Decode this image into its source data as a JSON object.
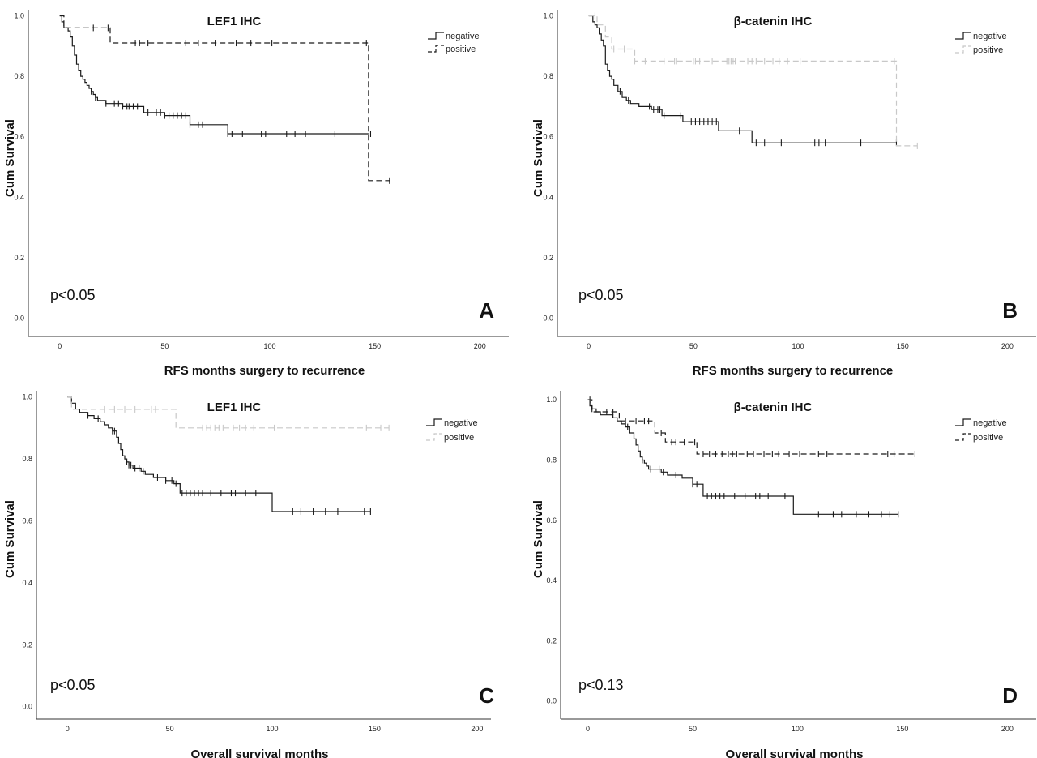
{
  "chart_data": [
    {
      "type": "line",
      "panel_letter": "A",
      "title": "LEF1 IHC",
      "xlabel": "RFS months surgery to recurrence",
      "ylabel": "Cum Survival",
      "annotation": "p<0.05",
      "xlim": [
        -8,
        213
      ],
      "ylim": [
        -0.06,
        1.02
      ],
      "xticks": [
        "0",
        "50",
        "100",
        "150",
        "200"
      ],
      "yticks": [
        "0.0",
        "0.2",
        "0.4",
        "0.6",
        "0.8",
        "1.0"
      ],
      "legend_position": "top-right",
      "series": [
        {
          "name": "negative",
          "style": "solid",
          "color": "#1a1a1a",
          "x": [
            0,
            1,
            2,
            4,
            5,
            6,
            7,
            8,
            9,
            10,
            11,
            12,
            13,
            14,
            15,
            16,
            17,
            18,
            19,
            20,
            22,
            24,
            30,
            40,
            50,
            62,
            80,
            147
          ],
          "y": [
            1.0,
            0.98,
            0.96,
            0.95,
            0.93,
            0.9,
            0.87,
            0.84,
            0.82,
            0.8,
            0.79,
            0.78,
            0.77,
            0.76,
            0.75,
            0.74,
            0.73,
            0.72,
            0.72,
            0.72,
            0.71,
            0.71,
            0.7,
            0.68,
            0.67,
            0.64,
            0.61,
            0.61
          ],
          "censored": [
            15,
            17,
            22,
            26,
            28,
            30,
            32,
            33,
            35,
            37,
            42,
            46,
            48,
            50,
            52,
            54,
            56,
            58,
            60,
            62,
            66,
            68,
            80,
            82,
            87,
            96,
            98,
            108,
            112,
            117,
            131,
            148
          ]
        },
        {
          "name": "positive",
          "style": "dashed",
          "color": "#1a1a1a",
          "x": [
            0,
            2,
            24,
            147,
            157
          ],
          "y": [
            1.0,
            0.96,
            0.91,
            0.455,
            0.455
          ],
          "censored": [
            16,
            23,
            36,
            38,
            42,
            60,
            66,
            74,
            84,
            91,
            101,
            146,
            157
          ]
        }
      ]
    },
    {
      "type": "line",
      "panel_letter": "B",
      "title": "β-catenin IHC",
      "xlabel": "RFS months surgery to recurrence",
      "ylabel": "Cum Survival",
      "annotation": "p<0.05",
      "xlim": [
        -8,
        213
      ],
      "ylim": [
        -0.06,
        1.02
      ],
      "xticks": [
        "0",
        "50",
        "100",
        "150",
        "200"
      ],
      "yticks": [
        "0.0",
        "0.2",
        "0.4",
        "0.6",
        "0.8",
        "1.0"
      ],
      "legend_position": "top-right",
      "series": [
        {
          "name": "negative",
          "style": "solid",
          "color": "#1a1a1a",
          "x": [
            0,
            2,
            3,
            4,
            5,
            6,
            7,
            8,
            9,
            10,
            11,
            12,
            14,
            16,
            18,
            20,
            22,
            24,
            30,
            35,
            45,
            62,
            78,
            147
          ],
          "y": [
            1.0,
            0.98,
            0.97,
            0.96,
            0.94,
            0.92,
            0.9,
            0.84,
            0.82,
            0.8,
            0.79,
            0.77,
            0.75,
            0.73,
            0.72,
            0.71,
            0.71,
            0.7,
            0.69,
            0.67,
            0.65,
            0.62,
            0.58,
            0.58
          ],
          "censored": [
            15,
            19,
            29,
            31,
            33,
            34,
            36,
            44,
            49,
            51,
            53,
            55,
            57,
            59,
            61,
            72,
            80,
            84,
            92,
            108,
            110,
            113,
            130,
            147
          ]
        },
        {
          "name": "positive",
          "style": "dashed",
          "color": "#c8c8c8",
          "x": [
            0,
            4,
            8,
            11,
            22,
            147,
            157
          ],
          "y": [
            1.0,
            0.97,
            0.93,
            0.89,
            0.85,
            0.57,
            0.57
          ],
          "censored": [
            3,
            12,
            17,
            22,
            27,
            36,
            41,
            42,
            50,
            51,
            53,
            59,
            66,
            67,
            68,
            69,
            70,
            76,
            78,
            80,
            84,
            88,
            91,
            95,
            101,
            146,
            157
          ]
        }
      ]
    },
    {
      "type": "line",
      "panel_letter": "C",
      "title": "LEF1 IHC",
      "xlabel": "Overall survival months",
      "ylabel": "Cum Survival",
      "annotation": "p<0.05",
      "xlim": [
        -8,
        206
      ],
      "ylim": [
        -0.04,
        1.02
      ],
      "xticks": [
        "0",
        "50",
        "100",
        "150",
        "200"
      ],
      "yticks": [
        "0.0",
        "0.2",
        "0.4",
        "0.6",
        "0.8",
        "1.0"
      ],
      "legend_position": "top-right",
      "series": [
        {
          "name": "negative",
          "style": "solid",
          "color": "#1a1a1a",
          "x": [
            0,
            2,
            4,
            6,
            10,
            13,
            16,
            18,
            20,
            22,
            24,
            25,
            26,
            27,
            28,
            29,
            30,
            32,
            34,
            36,
            38,
            40,
            42,
            45,
            48,
            52,
            55,
            100,
            148
          ],
          "y": [
            1.0,
            0.98,
            0.96,
            0.95,
            0.94,
            0.93,
            0.92,
            0.91,
            0.9,
            0.89,
            0.87,
            0.85,
            0.83,
            0.81,
            0.8,
            0.79,
            0.78,
            0.77,
            0.77,
            0.76,
            0.75,
            0.75,
            0.74,
            0.74,
            0.73,
            0.72,
            0.69,
            0.63,
            0.63
          ],
          "censored": [
            10,
            15,
            22,
            23,
            29,
            30,
            31,
            33,
            35,
            37,
            44,
            48,
            51,
            53,
            56,
            58,
            60,
            62,
            64,
            66,
            70,
            75,
            80,
            82,
            87,
            92,
            110,
            114,
            120,
            126,
            132,
            145,
            148
          ]
        },
        {
          "name": "positive",
          "style": "dashed",
          "color": "#c8c8c8",
          "x": [
            0,
            2,
            53,
            157
          ],
          "y": [
            1.0,
            0.96,
            0.9,
            0.9
          ],
          "censored": [
            18,
            23,
            28,
            33,
            41,
            43,
            66,
            68,
            70,
            72,
            74,
            76,
            81,
            84,
            87,
            91,
            101,
            146,
            153,
            157
          ]
        }
      ]
    },
    {
      "type": "line",
      "panel_letter": "D",
      "title": "β-catenin IHC",
      "xlabel": "Overall survival months",
      "ylabel": "Cum Survival",
      "annotation": "p<0.13",
      "xlim": [
        -6,
        213
      ],
      "ylim": [
        -0.06,
        1.03
      ],
      "xticks": [
        "0",
        "50",
        "100",
        "150",
        "200"
      ],
      "yticks": [
        "0.0",
        "0.2",
        "0.4",
        "0.6",
        "0.8",
        "1.0"
      ],
      "legend_position": "top-right",
      "series": [
        {
          "name": "negative",
          "style": "solid",
          "color": "#1a1a1a",
          "x": [
            0,
            1,
            2,
            4,
            6,
            10,
            12,
            14,
            16,
            18,
            20,
            22,
            23,
            24,
            25,
            26,
            27,
            28,
            29,
            30,
            32,
            35,
            38,
            45,
            50,
            55,
            98,
            148
          ],
          "y": [
            1.0,
            0.98,
            0.97,
            0.96,
            0.95,
            0.95,
            0.94,
            0.93,
            0.92,
            0.91,
            0.89,
            0.87,
            0.85,
            0.83,
            0.81,
            0.8,
            0.79,
            0.78,
            0.77,
            0.77,
            0.77,
            0.76,
            0.75,
            0.74,
            0.72,
            0.68,
            0.62,
            0.62
          ],
          "censored": [
            2,
            19,
            26,
            30,
            34,
            36,
            42,
            50,
            52,
            57,
            59,
            61,
            63,
            65,
            70,
            75,
            80,
            82,
            86,
            94,
            110,
            117,
            121,
            128,
            134,
            140,
            144,
            148
          ]
        },
        {
          "name": "positive",
          "style": "dashed",
          "color": "#1a1a1a",
          "x": [
            0,
            2,
            15,
            32,
            37,
            52,
            156
          ],
          "y": [
            1.0,
            0.96,
            0.93,
            0.89,
            0.86,
            0.82,
            0.82
          ],
          "censored": [
            1,
            9,
            12,
            18,
            23,
            27,
            29,
            35,
            40,
            42,
            46,
            51,
            55,
            58,
            61,
            64,
            67,
            69,
            71,
            76,
            79,
            84,
            88,
            91,
            96,
            101,
            110,
            114,
            143,
            146,
            156
          ]
        }
      ]
    }
  ]
}
